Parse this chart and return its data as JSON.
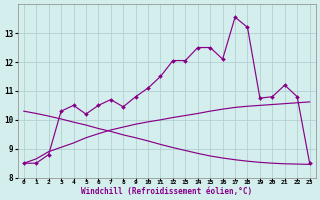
{
  "bg_color": "#d4eeed",
  "line_color": "#880088",
  "x": [
    0,
    1,
    2,
    3,
    4,
    5,
    6,
    7,
    8,
    9,
    10,
    11,
    12,
    13,
    14,
    15,
    16,
    17,
    18,
    19,
    20,
    21,
    22,
    23
  ],
  "line_main": [
    8.5,
    8.5,
    8.8,
    10.3,
    10.5,
    10.2,
    10.5,
    10.7,
    10.45,
    10.8,
    11.1,
    11.5,
    12.05,
    12.05,
    12.5,
    12.5,
    12.1,
    13.55,
    13.2,
    10.75,
    10.8,
    11.2,
    10.8,
    8.5
  ],
  "line_rise": [
    8.5,
    8.65,
    8.9,
    9.05,
    9.2,
    9.38,
    9.52,
    9.65,
    9.75,
    9.85,
    9.93,
    10.0,
    10.08,
    10.15,
    10.22,
    10.3,
    10.37,
    10.43,
    10.47,
    10.5,
    10.53,
    10.56,
    10.59,
    10.62
  ],
  "line_fall": [
    10.3,
    10.22,
    10.13,
    10.03,
    9.92,
    9.82,
    9.7,
    9.6,
    9.48,
    9.38,
    9.27,
    9.15,
    9.04,
    8.94,
    8.84,
    8.75,
    8.68,
    8.62,
    8.57,
    8.53,
    8.5,
    8.48,
    8.47,
    8.46
  ],
  "ylim": [
    8.0,
    14.0
  ],
  "yticks": [
    8,
    9,
    10,
    11,
    12,
    13
  ],
  "xticks": [
    0,
    1,
    2,
    3,
    4,
    5,
    6,
    7,
    8,
    9,
    10,
    11,
    12,
    13,
    14,
    15,
    16,
    17,
    18,
    19,
    20,
    21,
    22,
    23
  ],
  "xlabel": "Windchill (Refroidissement éolien,°C)"
}
